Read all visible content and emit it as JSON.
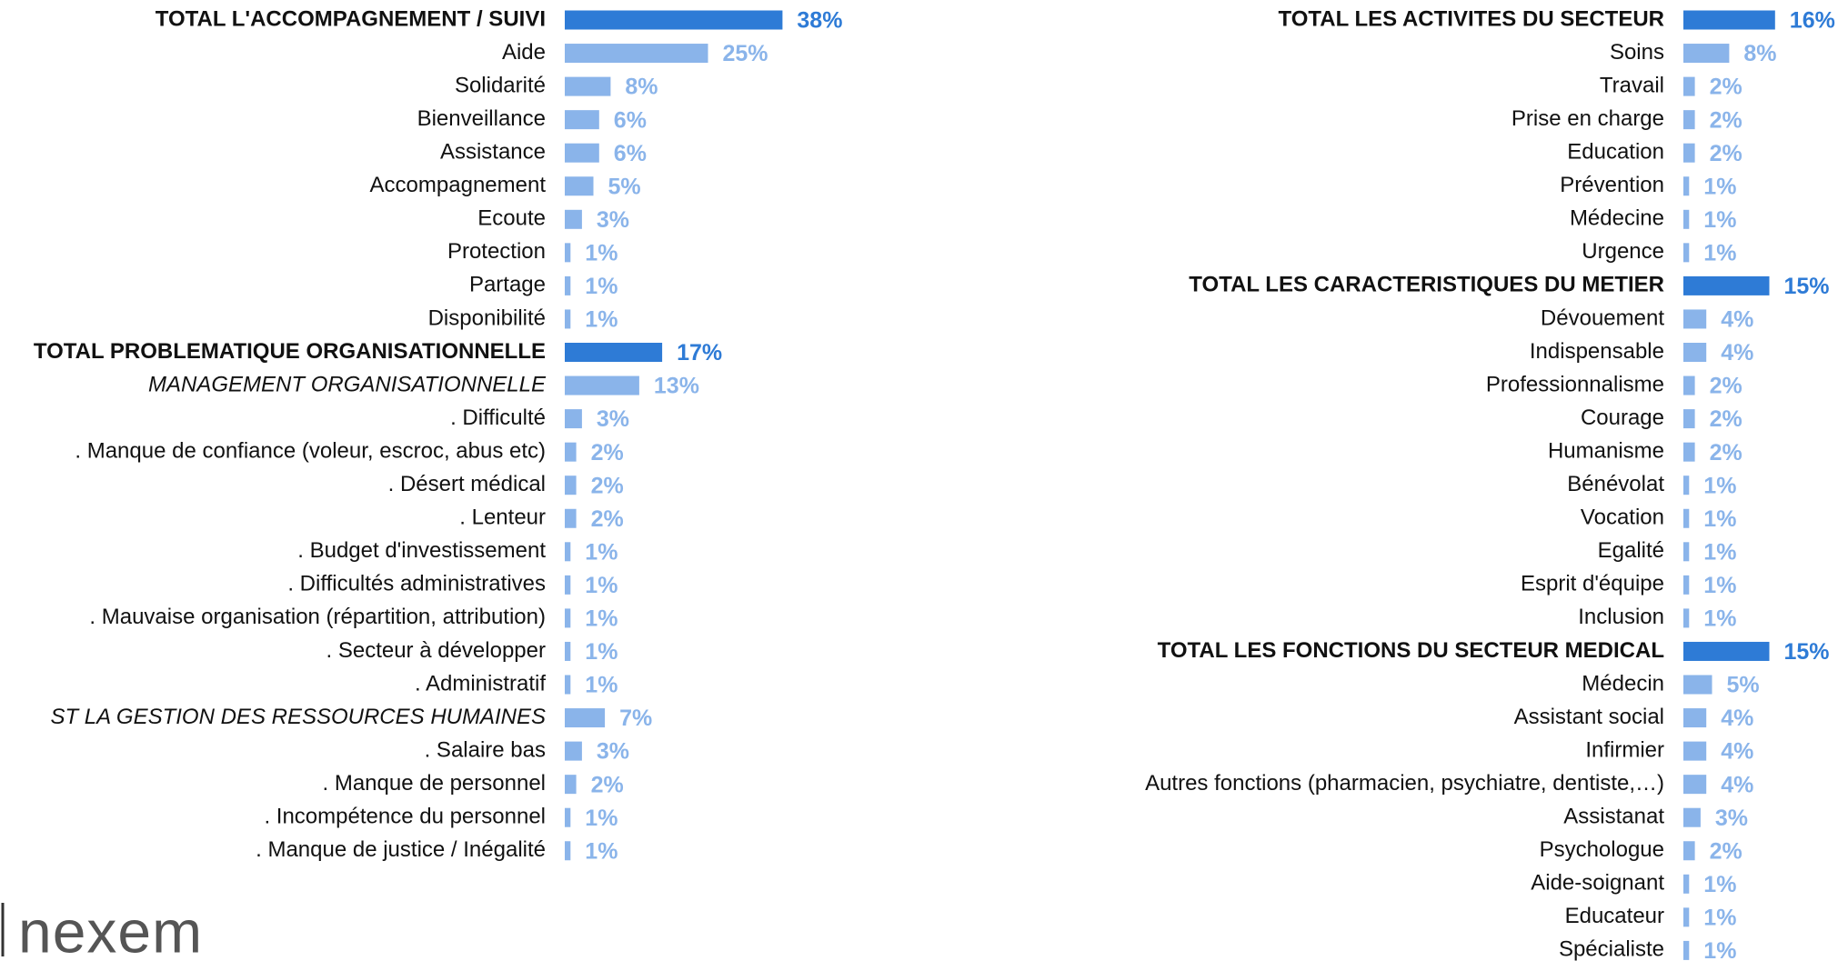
{
  "chart_data": [
    {
      "type": "bar",
      "orientation": "horizontal",
      "categories": [
        "TOTAL L'ACCOMPAGNEMENT / SUIVI",
        "Aide",
        "Solidarité",
        "Bienveillance",
        "Assistance",
        "Accompagnement",
        "Ecoute",
        "Protection",
        "Partage",
        "Disponibilité",
        "TOTAL PROBLEMATIQUE ORGANISATIONNELLE",
        "MANAGEMENT ORGANISATIONNELLE",
        ". Difficulté",
        ". Manque de confiance (voleur, escroc, abus etc)",
        ". Désert médical",
        ". Lenteur",
        ". Budget d'investissement",
        ". Difficultés administratives",
        ". Mauvaise organisation (répartition, attribution)",
        ". Secteur à développer",
        ". Administratif",
        "ST LA GESTION DES RESSOURCES HUMAINES",
        ". Salaire bas",
        ". Manque de personnel",
        ". Incompétence du personnel",
        ". Manque de justice / Inégalité"
      ],
      "values": [
        38,
        25,
        8,
        6,
        6,
        5,
        3,
        1,
        1,
        1,
        17,
        13,
        3,
        2,
        2,
        2,
        1,
        1,
        1,
        1,
        1,
        7,
        3,
        2,
        1,
        1
      ],
      "value_labels": [
        "38%",
        "25%",
        "8%",
        "6%",
        "6%",
        "5%",
        "3%",
        "1%",
        "1%",
        "1%",
        "17%",
        "13%",
        "3%",
        "2%",
        "2%",
        "2%",
        "1%",
        "1%",
        "1%",
        "1%",
        "1%",
        "7%",
        "3%",
        "2%",
        "1%",
        "1%"
      ],
      "colors": [
        "#2e7bd6",
        "#8ab4ea",
        "#8ab4ea",
        "#8ab4ea",
        "#8ab4ea",
        "#8ab4ea",
        "#8ab4ea",
        "#8ab4ea",
        "#8ab4ea",
        "#8ab4ea",
        "#2e7bd6",
        "#8ab4ea",
        "#8ab4ea",
        "#8ab4ea",
        "#8ab4ea",
        "#8ab4ea",
        "#8ab4ea",
        "#8ab4ea",
        "#8ab4ea",
        "#8ab4ea",
        "#8ab4ea",
        "#8ab4ea",
        "#8ab4ea",
        "#8ab4ea",
        "#8ab4ea",
        "#8ab4ea"
      ],
      "label_styles": [
        "bold",
        "normal",
        "normal",
        "normal",
        "normal",
        "normal",
        "normal",
        "normal",
        "normal",
        "normal",
        "bold",
        "italic",
        "normal",
        "normal",
        "normal",
        "normal",
        "normal",
        "normal",
        "normal",
        "normal",
        "normal",
        "italic",
        "normal",
        "normal",
        "normal",
        "normal"
      ]
    },
    {
      "type": "bar",
      "orientation": "horizontal",
      "categories": [
        "TOTAL LES ACTIVITES DU SECTEUR",
        "Soins",
        "Travail",
        "Prise en charge",
        "Education",
        "Prévention",
        "Médecine",
        "Urgence",
        "TOTAL LES CARACTERISTIQUES DU METIER",
        "Dévouement",
        "Indispensable",
        "Professionnalisme",
        "Courage",
        "Humanisme",
        "Bénévolat",
        "Vocation",
        "Egalité",
        "Esprit d'équipe",
        "Inclusion",
        "TOTAL LES FONCTIONS DU SECTEUR MEDICAL",
        "Médecin",
        "Assistant social",
        "Infirmier",
        "Autres fonctions (pharmacien, psychiatre, dentiste,…)",
        "Assistanat",
        "Psychologue",
        "Aide-soignant",
        "Educateur",
        "Spécialiste"
      ],
      "values": [
        16,
        8,
        2,
        2,
        2,
        1,
        1,
        1,
        15,
        4,
        4,
        2,
        2,
        2,
        1,
        1,
        1,
        1,
        1,
        15,
        5,
        4,
        4,
        4,
        3,
        2,
        1,
        1,
        1
      ],
      "value_labels": [
        "16%",
        "8%",
        "2%",
        "2%",
        "2%",
        "1%",
        "1%",
        "1%",
        "15%",
        "4%",
        "4%",
        "2%",
        "2%",
        "2%",
        "1%",
        "1%",
        "1%",
        "1%",
        "1%",
        "15%",
        "5%",
        "4%",
        "4%",
        "4%",
        "3%",
        "2%",
        "1%",
        "1%",
        "1%"
      ],
      "colors": [
        "#2e7bd6",
        "#8ab4ea",
        "#8ab4ea",
        "#8ab4ea",
        "#8ab4ea",
        "#8ab4ea",
        "#8ab4ea",
        "#8ab4ea",
        "#2e7bd6",
        "#8ab4ea",
        "#8ab4ea",
        "#8ab4ea",
        "#8ab4ea",
        "#8ab4ea",
        "#8ab4ea",
        "#8ab4ea",
        "#8ab4ea",
        "#8ab4ea",
        "#8ab4ea",
        "#2e7bd6",
        "#8ab4ea",
        "#8ab4ea",
        "#8ab4ea",
        "#8ab4ea",
        "#8ab4ea",
        "#8ab4ea",
        "#8ab4ea",
        "#8ab4ea",
        "#8ab4ea"
      ],
      "label_styles": [
        "bold",
        "normal",
        "normal",
        "normal",
        "normal",
        "normal",
        "normal",
        "normal",
        "bold",
        "normal",
        "normal",
        "normal",
        "normal",
        "normal",
        "normal",
        "normal",
        "normal",
        "normal",
        "normal",
        "bold",
        "normal",
        "normal",
        "normal",
        "normal",
        "normal",
        "normal",
        "normal",
        "normal",
        "normal"
      ]
    }
  ],
  "logo": "nexem"
}
